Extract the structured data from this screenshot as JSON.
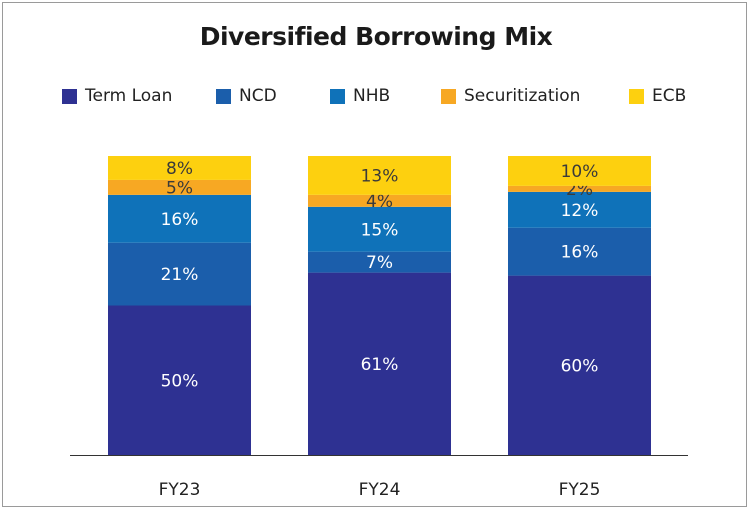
{
  "chart_data": {
    "type": "bar",
    "stacked": true,
    "title": "Diversified Borrowing Mix",
    "categories": [
      "FY23",
      "FY24",
      "FY25"
    ],
    "series": [
      {
        "name": "Term Loan",
        "color": "#2e3192",
        "values": [
          50,
          61,
          60
        ]
      },
      {
        "name": "NCD",
        "color": "#1b5eab",
        "values": [
          21,
          7,
          16
        ]
      },
      {
        "name": "NHB",
        "color": "#0f72b9",
        "values": [
          16,
          15,
          12
        ]
      },
      {
        "name": "Securitization",
        "color": "#f7a823",
        "values": [
          5,
          4,
          2
        ]
      },
      {
        "name": "ECB",
        "color": "#fdd00f",
        "values": [
          8,
          13,
          10
        ]
      }
    ],
    "unit": "%",
    "ylim": [
      0,
      100
    ],
    "grid": false,
    "legend_position": "top"
  }
}
